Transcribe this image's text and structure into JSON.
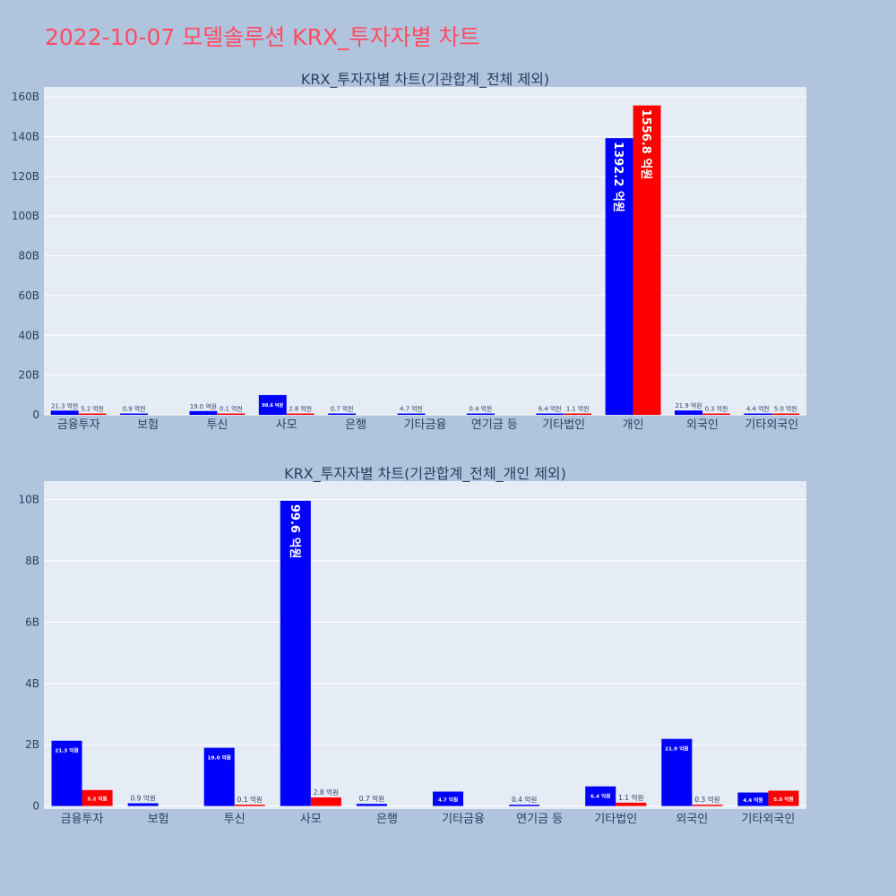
{
  "page": {
    "title": "2022-10-07 모델솔루션 KRX_투자자별 차트"
  },
  "colors": {
    "buy": "#0000ff",
    "sell": "#ff0000",
    "plot_bg": "#e5ecf6",
    "page_bg": "#b0c4de",
    "title": "#ff4b61"
  },
  "chart_data": [
    {
      "type": "bar",
      "title": "KRX_투자자별 차트(기관합계_전체 제외)",
      "categories": [
        "금융투자",
        "보험",
        "투신",
        "사모",
        "은행",
        "기타금융",
        "연기금 등",
        "기타법인",
        "개인",
        "외국인",
        "기타외국인"
      ],
      "series": [
        {
          "values": [
            2.13,
            0.09,
            1.9,
            9.96,
            0.07,
            0.47,
            0.04,
            0.64,
            139.22,
            2.19,
            0.44
          ],
          "labels": [
            "21.3 억원",
            "0.9 억원",
            "19.0 억원",
            "99.6 억원",
            "0.7 억원",
            "4.7 억원",
            "0.4 억원",
            "6.4 억원",
            "1392.2 억원",
            "21.9 억원",
            "4.4 억원"
          ]
        },
        {
          "values": [
            0.52,
            null,
            0.01,
            0.28,
            null,
            null,
            null,
            0.11,
            155.68,
            0.03,
            0.5
          ],
          "labels": [
            "5.2 억원",
            "",
            "0.1 억원",
            "2.8 억원",
            "",
            "",
            "",
            "1.1 억원",
            "1556.8 억원",
            "0.3 억원",
            "5.0 억원"
          ]
        }
      ],
      "ylim": [
        0,
        165
      ],
      "yticks": [
        0,
        20,
        40,
        60,
        80,
        100,
        120,
        140,
        160
      ],
      "ytick_labels": [
        "0",
        "20B",
        "40B",
        "60B",
        "80B",
        "100B",
        "120B",
        "140B",
        "160B"
      ]
    },
    {
      "type": "bar",
      "title": "KRX_투자자별 차트(기관합계_전체_개인 제외)",
      "categories": [
        "금융투자",
        "보험",
        "투신",
        "사모",
        "은행",
        "기타금융",
        "연기금 등",
        "기타법인",
        "외국인",
        "기타외국인"
      ],
      "series": [
        {
          "values": [
            2.13,
            0.09,
            1.9,
            9.96,
            0.07,
            0.47,
            0.04,
            0.64,
            2.19,
            0.44
          ],
          "labels": [
            "21.3 억원",
            "0.9 억원",
            "19.0 억원",
            "99.6 억원",
            "0.7 억원",
            "4.7 억원",
            "0.4 억원",
            "6.4 억원",
            "21.9 억원",
            "4.4 억원"
          ]
        },
        {
          "values": [
            0.52,
            null,
            0.01,
            0.28,
            null,
            null,
            null,
            0.11,
            0.03,
            0.5
          ],
          "labels": [
            "5.2 억원",
            "",
            "0.1 억원",
            "2.8 억원",
            "",
            "",
            "",
            "1.1 억원",
            "0.3 억원",
            "5.0 억원"
          ]
        }
      ],
      "ylim": [
        -0.1,
        10.6
      ],
      "yticks": [
        0,
        2,
        4,
        6,
        8,
        10
      ],
      "ytick_labels": [
        "0",
        "2B",
        "4B",
        "6B",
        "8B",
        "10B"
      ]
    }
  ]
}
